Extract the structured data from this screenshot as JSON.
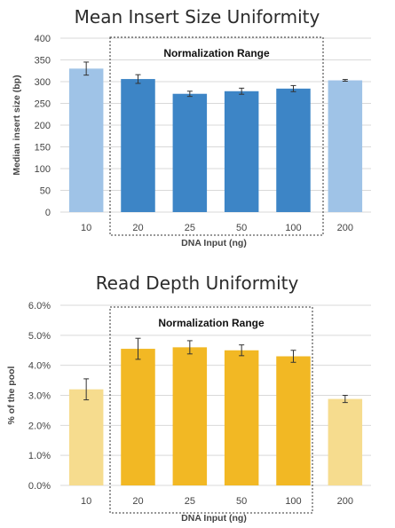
{
  "chart_data": [
    {
      "type": "bar",
      "title": "Mean Insert Size Uniformity",
      "xlabel": "DNA Input (ng)",
      "ylabel": "Median insert size (bp)",
      "ylim": [
        0,
        400
      ],
      "yticks": [
        "0",
        "50",
        "100",
        "150",
        "200",
        "250",
        "300",
        "350",
        "400"
      ],
      "categories": [
        "10",
        "20",
        "25",
        "50",
        "100",
        "200"
      ],
      "values": [
        330,
        306,
        272,
        278,
        284,
        303
      ],
      "errors": [
        15,
        10,
        6,
        7,
        7,
        2
      ],
      "grid": true,
      "annotation": "Normalization Range",
      "normalization_range": [
        "20",
        "100"
      ],
      "colors": {
        "inside_range": "#3d85c6",
        "outside_range": "#9fc3e7",
        "error_bar": "#333333",
        "gridline": "#d9d9d9",
        "box": "#333333"
      }
    },
    {
      "type": "bar",
      "title": "Read Depth Uniformity",
      "xlabel": "DNA Input (ng)",
      "ylabel": "% of the pool",
      "ylim": [
        0,
        6
      ],
      "yticks": [
        "0.0%",
        "1.0%",
        "2.0%",
        "3.0%",
        "4.0%",
        "5.0%",
        "6.0%"
      ],
      "categories": [
        "10",
        "20",
        "25",
        "50",
        "100",
        "200"
      ],
      "values": [
        3.2,
        4.55,
        4.6,
        4.5,
        4.3,
        2.88
      ],
      "errors": [
        0.35,
        0.35,
        0.22,
        0.18,
        0.2,
        0.12
      ],
      "grid": true,
      "annotation": "Normalization Range",
      "normalization_range": [
        "20",
        "100"
      ],
      "colors": {
        "inside_range": "#f2b824",
        "outside_range": "#f6dc8e",
        "error_bar": "#333333",
        "gridline": "#d9d9d9",
        "box": "#333333"
      }
    }
  ]
}
